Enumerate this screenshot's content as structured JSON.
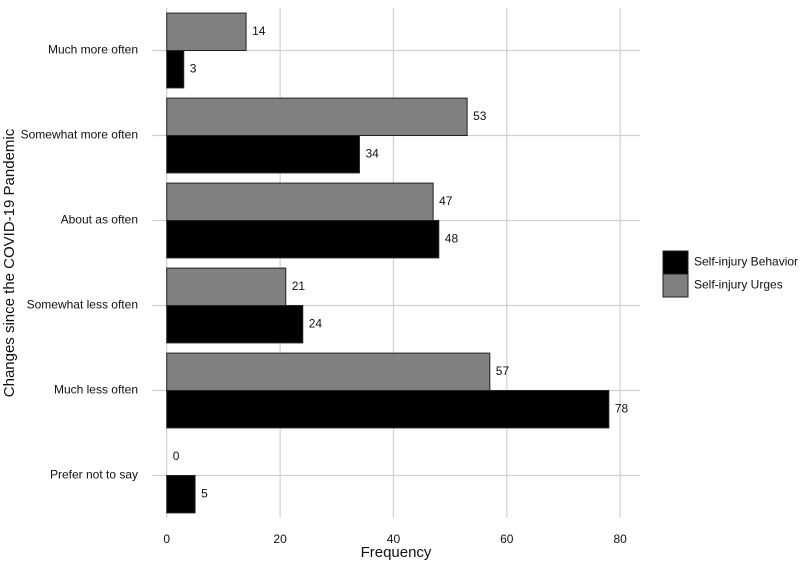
{
  "chart_data": {
    "type": "barh",
    "x_label": "Frequency",
    "y_label": "Changes since the COVID-19 Pandemic",
    "categories": [
      "Much more often",
      "Somewhat more often",
      "About as often",
      "Somewhat less often",
      "Much less often",
      "Prefer not to say"
    ],
    "series": [
      {
        "name": "Self-injury Behavior",
        "color": "#000000",
        "values": [
          3,
          34,
          48,
          24,
          78,
          5
        ]
      },
      {
        "name": "Self-injury Urges",
        "color": "#808080",
        "values": [
          14,
          53,
          47,
          21,
          57,
          0
        ]
      }
    ],
    "xlim": [
      -2.6,
      83.5
    ],
    "xticks": [
      0,
      20,
      40,
      60,
      80
    ],
    "grid": true,
    "legend": "right"
  }
}
